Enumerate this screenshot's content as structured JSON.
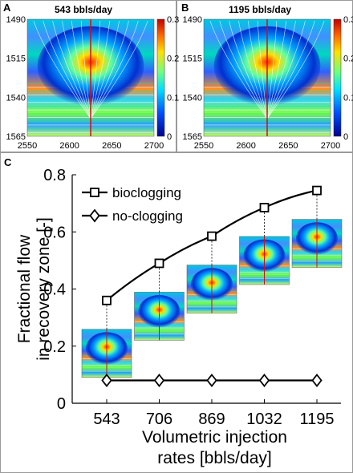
{
  "panel_a": {
    "letter": "A",
    "title": "543 bbls/day",
    "y_ticks": [
      "1490",
      "1515",
      "1540",
      "1565"
    ],
    "x_ticks": [
      "2550",
      "2600",
      "2650",
      "2700"
    ],
    "colorbar_ticks": [
      "0.3",
      "0.2",
      "0.1",
      "0"
    ]
  },
  "panel_b": {
    "letter": "B",
    "title": "1195 bbls/day",
    "y_ticks": [
      "1490",
      "1515",
      "1540",
      "1565"
    ],
    "x_ticks": [
      "2550",
      "2600",
      "2650",
      "2700"
    ],
    "colorbar_ticks": [
      "0.3",
      "0.2",
      "0.1",
      "0"
    ]
  },
  "panel_c": {
    "letter": "C"
  },
  "colors": {
    "line": "#000000",
    "well": "#d01010",
    "field_low": "#00007f",
    "field_high": "#ff2000"
  },
  "chart_data": {
    "type": "line",
    "categories": [
      "543",
      "706",
      "869",
      "1032",
      "1195"
    ],
    "series": [
      {
        "name": "bioclogging",
        "marker": "square",
        "values": [
          0.36,
          0.49,
          0.585,
          0.685,
          0.745
        ]
      },
      {
        "name": "no-clogging",
        "marker": "diamond",
        "values": [
          0.08,
          0.08,
          0.08,
          0.08,
          0.08
        ]
      }
    ],
    "ylim": [
      0,
      0.8
    ],
    "y_ticks": [
      "0",
      "0.2",
      "0.4",
      "0.6",
      "0.8"
    ],
    "ylabel_line1": "Fractional flow",
    "ylabel_line2": "in recovery zone [-]",
    "xlabel_line1": "Volumetric injection",
    "xlabel_line2": "rates [bbls/day]",
    "legend_position": "top-left",
    "grid": false
  }
}
